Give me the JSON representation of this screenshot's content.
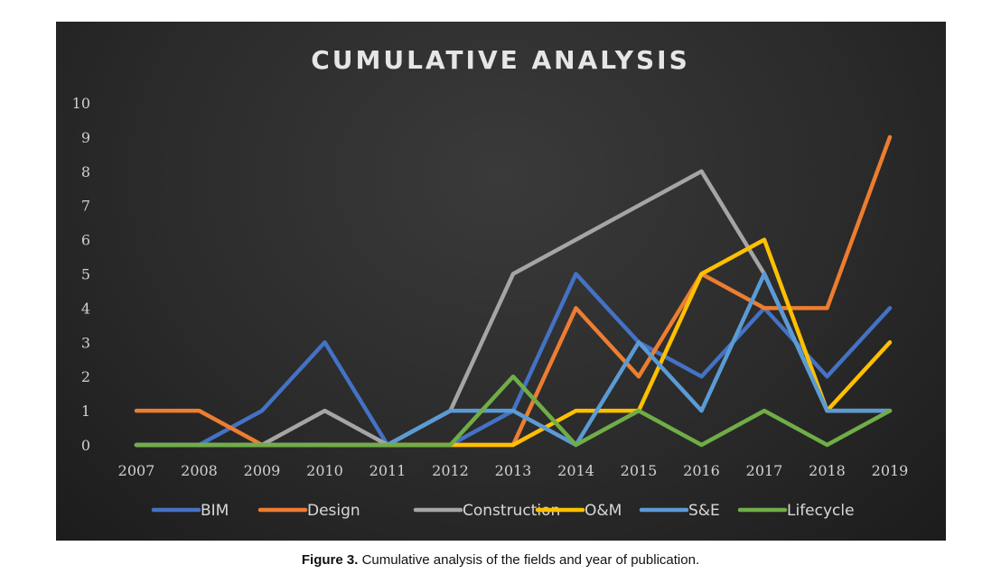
{
  "chart_data": {
    "type": "line",
    "title": "CUMULATIVE ANALYSIS",
    "x": [
      "2007",
      "2008",
      "2009",
      "2010",
      "2011",
      "2012",
      "2013",
      "2014",
      "2015",
      "2016",
      "2017",
      "2018",
      "2019"
    ],
    "ylim": [
      0,
      10
    ],
    "yticks": [
      "0",
      "1",
      "2",
      "3",
      "4",
      "5",
      "6",
      "7",
      "8",
      "9",
      "10"
    ],
    "grid": false,
    "legend_position": "bottom",
    "series": [
      {
        "name": "BIM",
        "color": "#4472c4",
        "values": [
          0,
          0,
          1,
          3,
          0,
          0,
          1,
          5,
          3,
          2,
          4,
          2,
          4
        ]
      },
      {
        "name": "Design",
        "color": "#ed7d31",
        "values": [
          1,
          1,
          0,
          0,
          0,
          0,
          0,
          4,
          2,
          5,
          4,
          4,
          9
        ]
      },
      {
        "name": "Construction",
        "color": "#a5a5a5",
        "values": [
          0,
          0,
          0,
          1,
          0,
          1,
          5,
          6,
          7,
          8,
          5,
          1,
          1
        ]
      },
      {
        "name": "O&M",
        "color": "#ffc000",
        "values": [
          0,
          0,
          0,
          0,
          0,
          0,
          0,
          1,
          1,
          5,
          6,
          1,
          3
        ]
      },
      {
        "name": "S&E",
        "color": "#5b9bd5",
        "values": [
          0,
          0,
          0,
          0,
          0,
          1,
          1,
          0,
          3,
          1,
          5,
          1,
          1
        ]
      },
      {
        "name": "Lifecycle",
        "color": "#70ad47",
        "values": [
          0,
          0,
          0,
          0,
          0,
          0,
          2,
          0,
          1,
          0,
          1,
          0,
          1
        ]
      }
    ]
  },
  "caption": {
    "label": "Figure 3.",
    "text": "Cumulative analysis of the fields and year of publication."
  }
}
